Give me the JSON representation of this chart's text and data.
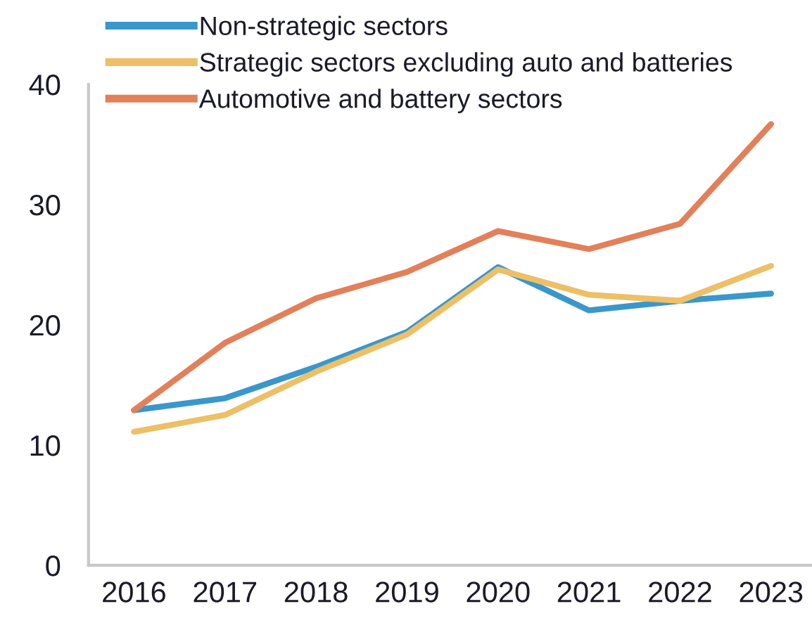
{
  "chart_data": {
    "type": "line",
    "categories": [
      "2016",
      "2017",
      "2018",
      "2019",
      "2020",
      "2021",
      "2022",
      "2023"
    ],
    "series": [
      {
        "name": "Non-strategic sectors",
        "color": "#3a97cb",
        "values": [
          12.9,
          13.9,
          16.5,
          19.4,
          24.8,
          21.2,
          22.0,
          22.6
        ]
      },
      {
        "name": "Strategic sectors excluding auto and batteries",
        "color": "#edbf66",
        "values": [
          11.1,
          12.5,
          16.1,
          19.2,
          24.6,
          22.5,
          22.0,
          24.9
        ]
      },
      {
        "name": "Automotive and battery sectors",
        "color": "#e2805a",
        "values": [
          12.9,
          18.5,
          22.2,
          24.4,
          27.8,
          26.3,
          28.4,
          36.7
        ]
      }
    ],
    "ylim": [
      0,
      40
    ],
    "yticks": [
      0,
      10,
      20,
      30,
      40
    ],
    "grid": false,
    "legend": "top left",
    "marker": "none",
    "line_style": "solid"
  }
}
